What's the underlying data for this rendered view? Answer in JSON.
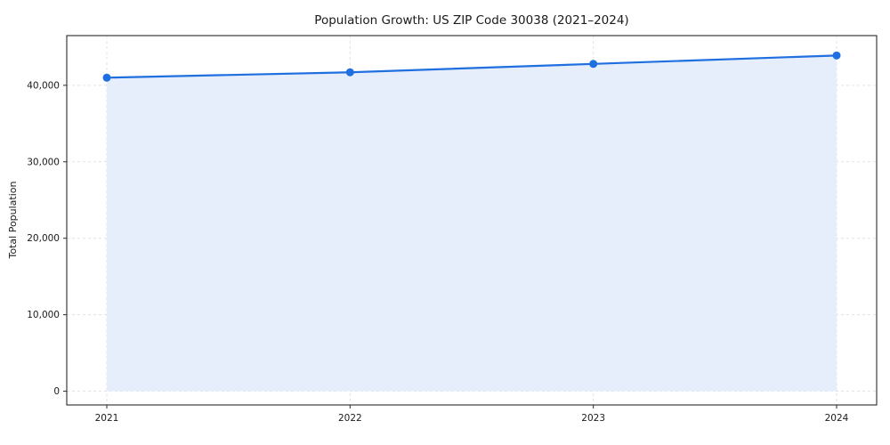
{
  "chart_data": {
    "type": "area",
    "title": "Population Growth: US ZIP Code 30038 (2021–2024)",
    "xlabel": "",
    "ylabel": "Total Population",
    "x": [
      "2021",
      "2022",
      "2023",
      "2024"
    ],
    "series": [
      {
        "name": "Total Population",
        "values": [
          41000,
          41700,
          42800,
          43900
        ]
      }
    ],
    "ylim": [
      0,
      46000
    ],
    "yticks": [
      0,
      10000,
      20000,
      30000,
      40000
    ],
    "grid": true,
    "grid_style": "dashed",
    "legend": "none",
    "colors": {
      "line": "#1f6fe0",
      "marker": "#1f6fe0",
      "fill": "#e6eefb",
      "grid": "#e2e2e2",
      "frame": "#2b2b2b",
      "tick_text": "#1a1a1a"
    }
  }
}
